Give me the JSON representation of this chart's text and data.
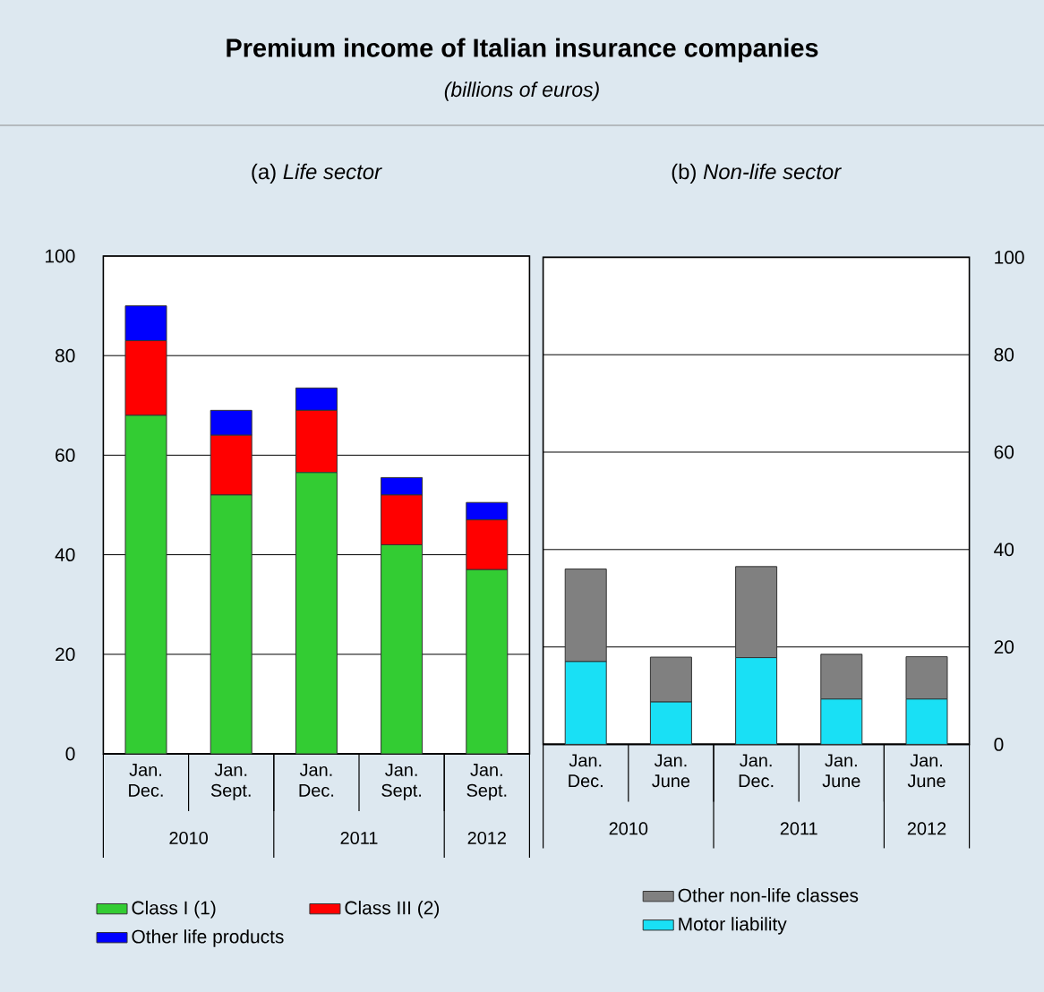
{
  "chart_data": [
    {
      "type": "other",
      "title": "Premium income of Italian insurance companies",
      "subtitle": "(billions of euros)"
    },
    {
      "type": "bar",
      "title": "(a) *Life sector*",
      "categories": [
        "Jan. Dec.",
        "Jan. Sept.",
        "Jan. Dec.",
        "Jan. Sept.",
        "Jan. Sept."
      ],
      "stacked": true,
      "ylim": [
        0,
        100
      ],
      "yticks": [
        0,
        20,
        40,
        60,
        80,
        100
      ],
      "grid": "y",
      "legend": "bottom",
      "annotations": [
        "2010",
        "2011",
        "2012"
      ],
      "series": [
        {
          "name": "Class I (1)",
          "color": "#33cc33",
          "values": [
            68,
            52,
            56.5,
            42,
            37
          ]
        },
        {
          "name": "Class III (2)",
          "color": "#ff0000",
          "values": [
            15,
            12,
            12.5,
            10,
            10
          ]
        },
        {
          "name": "Other life products",
          "color": "#0000ff",
          "values": [
            7,
            5,
            4.5,
            3.5,
            3.5
          ]
        }
      ]
    },
    {
      "type": "bar",
      "title": "(b) *Non-life sector*",
      "categories": [
        "Jan. Dec.",
        "Jan. June",
        "Jan. Dec.",
        "Jan. June",
        "Jan. June"
      ],
      "stacked": true,
      "ylim": [
        0,
        100
      ],
      "yticks": [
        0,
        20,
        40,
        60,
        80,
        100
      ],
      "grid": "y",
      "legend": "bottom",
      "annotations": [
        "2010",
        "2011",
        "2012"
      ],
      "series": [
        {
          "name": "Motor liability",
          "color": "#19e0f5",
          "values": [
            17,
            8.7,
            17.8,
            9.3,
            9.3
          ]
        },
        {
          "name": "Other non-life classes",
          "color": "#808080",
          "values": [
            19,
            9.2,
            18.7,
            9.2,
            8.7
          ]
        }
      ]
    }
  ]
}
